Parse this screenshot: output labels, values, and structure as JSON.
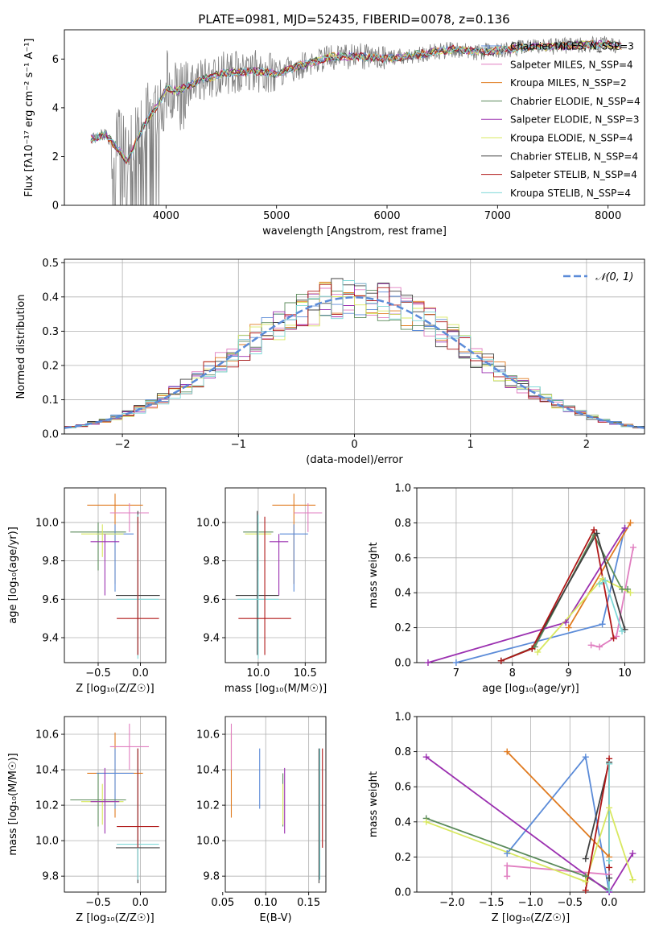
{
  "chart_data": [
    {
      "type": "line",
      "title": "PLATE=0981, MJD=52435, FIBERID=0078, z=0.136",
      "xlabel": "wavelength [Angstrom, rest frame]",
      "ylabel": "Flux [fλ10⁻¹⁷ erg cm⁻² s⁻¹ A⁻¹]",
      "xlim": [
        3080,
        8330
      ],
      "ylim": [
        0,
        7.2
      ],
      "xticks": [
        4000,
        5000,
        6000,
        7000,
        8000
      ],
      "yticks": [
        0,
        2,
        4,
        6
      ],
      "legend_position": "top-right",
      "observed_spectrum_color": "#808080",
      "legend": [
        "Chabrier MILES, N_SSP=3",
        "Salpeter MILES, N_SSP=4",
        "Kroupa MILES, N_SSP=2",
        "Chabrier ELODIE, N_SSP=4",
        "Salpeter ELODIE, N_SSP=3",
        "Kroupa ELODIE, N_SSP=4",
        "Chabrier STELIB, N_SSP=4",
        "Salpeter STELIB, N_SSP=4",
        "Kroupa STELIB, N_SSP=4"
      ],
      "legend_colors": [
        "#5b8bd8",
        "#e07ec0",
        "#e07b20",
        "#5a8a5a",
        "#9b30b0",
        "#d8e860",
        "#404040",
        "#b01818",
        "#7fd8d8"
      ],
      "model_continuum": {
        "x": [
          3300,
          3450,
          3550,
          3650,
          3800,
          3950,
          4000,
          4100,
          4300,
          4500,
          4800,
          5000,
          5200,
          5500,
          5800,
          6000,
          6300,
          6600,
          6800,
          7000,
          7300,
          7500,
          7800,
          8000,
          8100
        ],
        "y": [
          2.7,
          2.9,
          2.4,
          1.8,
          3.3,
          4.3,
          4.8,
          4.7,
          5.1,
          5.4,
          5.5,
          5.4,
          5.7,
          6.1,
          6.1,
          6.0,
          6.2,
          6.4,
          6.3,
          6.35,
          6.5,
          6.5,
          6.6,
          6.6,
          6.55
        ]
      }
    },
    {
      "type": "line",
      "title": "",
      "xlabel": "(data-model)/error",
      "ylabel": "Normed distribution",
      "xlim": [
        -2.5,
        2.5
      ],
      "ylim": [
        0,
        0.51
      ],
      "xticks": [
        -2,
        -1,
        0,
        1,
        2
      ],
      "yticks": [
        0.0,
        0.1,
        0.2,
        0.3,
        0.4,
        0.5
      ],
      "legend": [
        "𝒩(0, 1)"
      ],
      "legend_position": "top-right",
      "gaussian_color": "#5b8bd8",
      "series_colors": [
        "#5b8bd8",
        "#e07ec0",
        "#e07b20",
        "#5a8a5a",
        "#9b30b0",
        "#d8e860",
        "#404040",
        "#b01818",
        "#7fd8d8"
      ],
      "bin_width": 0.1
    },
    {
      "type": "scatter",
      "xlabel": "Z [log₁₀(Z/Z☉)]",
      "ylabel": "age  [log₁₀(age/yr)]",
      "xlim": [
        -0.9,
        0.3
      ],
      "ylim": [
        9.27,
        10.18
      ],
      "xticks": [
        -0.5,
        0.0
      ],
      "yticks": [
        9.4,
        9.6,
        9.8,
        10.0
      ],
      "points": [
        {
          "color": "#e07b20",
          "x": -0.3,
          "xerr": 0.33,
          "y": 10.09,
          "yerr": [
            0.41,
            0.06
          ]
        },
        {
          "color": "#e07ec0",
          "x": -0.13,
          "xerr": 0.23,
          "y": 10.05,
          "yerr": [
            0.1,
            0.05
          ]
        },
        {
          "color": "#5a8a5a",
          "x": -0.5,
          "xerr": 0.33,
          "y": 9.95,
          "yerr": [
            0.2,
            0.05
          ]
        },
        {
          "color": "#5b8bd8",
          "x": -0.3,
          "xerr": 0.22,
          "y": 9.94,
          "yerr": [
            0.3,
            0.05
          ]
        },
        {
          "color": "#d8e860",
          "x": -0.45,
          "xerr": 0.25,
          "y": 9.94,
          "yerr": [
            0.12,
            0.05
          ]
        },
        {
          "color": "#9b30b0",
          "x": -0.42,
          "xerr": 0.17,
          "y": 9.9,
          "yerr": [
            0.28,
            0.04
          ]
        },
        {
          "color": "#404040",
          "x": -0.03,
          "xerr": 0.26,
          "y": 9.62,
          "yerr": [
            0.31,
            0.44
          ]
        },
        {
          "color": "#7fd8d8",
          "x": -0.03,
          "xerr": 0.25,
          "y": 9.6,
          "yerr": [
            0.31,
            0.44
          ]
        },
        {
          "color": "#b01818",
          "x": -0.03,
          "xerr": 0.25,
          "y": 9.5,
          "yerr": [
            0.19,
            0.53
          ]
        }
      ]
    },
    {
      "type": "scatter",
      "xlabel": "mass [log₁₀(M/M☉)]",
      "ylabel": "",
      "xlim": [
        9.65,
        10.72
      ],
      "ylim": [
        9.27,
        10.18
      ],
      "xticks": [
        10.0,
        10.5
      ],
      "yticks": [
        9.4,
        9.6,
        9.8,
        10.0
      ],
      "points": [
        {
          "color": "#e07b20",
          "x": 10.38,
          "xerr": 0.23,
          "y": 10.09,
          "yerr": [
            0.41,
            0.06
          ]
        },
        {
          "color": "#e07ec0",
          "x": 10.53,
          "xerr": 0.15,
          "y": 10.05,
          "yerr": [
            0.1,
            0.05
          ]
        },
        {
          "color": "#5a8a5a",
          "x": 10.0,
          "xerr": 0.16,
          "y": 9.95,
          "yerr": [
            0.2,
            0.05
          ]
        },
        {
          "color": "#5b8bd8",
          "x": 10.38,
          "xerr": 0.15,
          "y": 9.94,
          "yerr": [
            0.3,
            0.05
          ]
        },
        {
          "color": "#d8e860",
          "x": 10.0,
          "xerr": 0.14,
          "y": 9.94,
          "yerr": [
            0.12,
            0.05
          ]
        },
        {
          "color": "#9b30b0",
          "x": 10.22,
          "xerr": 0.1,
          "y": 9.9,
          "yerr": [
            0.28,
            0.04
          ]
        },
        {
          "color": "#404040",
          "x": 9.99,
          "xerr": 0.23,
          "y": 9.62,
          "yerr": [
            0.31,
            0.44
          ]
        },
        {
          "color": "#7fd8d8",
          "x": 10.0,
          "xerr": 0.22,
          "y": 9.6,
          "yerr": [
            0.31,
            0.44
          ]
        },
        {
          "color": "#b01818",
          "x": 10.07,
          "xerr": 0.28,
          "y": 9.5,
          "yerr": [
            0.19,
            0.53
          ]
        }
      ]
    },
    {
      "type": "line",
      "xlabel": "age  [log₁₀(age/yr)]",
      "ylabel": "mass weight",
      "xlim": [
        6.3,
        10.35
      ],
      "ylim": [
        0,
        1.0
      ],
      "xticks": [
        7,
        8,
        9,
        10
      ],
      "yticks": [
        0.0,
        0.2,
        0.4,
        0.6,
        0.8,
        1.0
      ],
      "series": [
        {
          "color": "#5b8bd8",
          "x": [
            7.0,
            9.6,
            10.0
          ],
          "y": [
            0.0,
            0.22,
            0.77
          ]
        },
        {
          "color": "#e07ec0",
          "x": [
            9.4,
            9.55,
            9.85,
            10.15
          ],
          "y": [
            0.1,
            0.09,
            0.15,
            0.66
          ]
        },
        {
          "color": "#e07b20",
          "x": [
            9.0,
            10.1
          ],
          "y": [
            0.2,
            0.8
          ]
        },
        {
          "color": "#5a8a5a",
          "x": [
            7.8,
            8.4,
            9.45,
            9.95,
            10.05
          ],
          "y": [
            0.01,
            0.09,
            0.73,
            0.42,
            0.42
          ]
        },
        {
          "color": "#9b30b0",
          "x": [
            6.5,
            8.95,
            10.0
          ],
          "y": [
            0.0,
            0.23,
            0.77
          ]
        },
        {
          "color": "#d8e860",
          "x": [
            8.45,
            9.6,
            10.1
          ],
          "y": [
            0.06,
            0.48,
            0.4
          ]
        },
        {
          "color": "#404040",
          "x": [
            7.8,
            8.35,
            9.5,
            10.0
          ],
          "y": [
            0.01,
            0.08,
            0.74,
            0.19
          ]
        },
        {
          "color": "#b01818",
          "x": [
            7.8,
            8.35,
            9.45,
            9.8
          ],
          "y": [
            0.01,
            0.08,
            0.76,
            0.14
          ]
        },
        {
          "color": "#7fd8d8",
          "x": [
            9.55,
            9.65,
            9.95
          ],
          "y": [
            0.45,
            0.47,
            0.18
          ]
        }
      ]
    },
    {
      "type": "scatter",
      "xlabel": "Z [log₁₀(Z/Z☉)]",
      "ylabel": "mass [log₁₀(M/M☉)]",
      "xlim": [
        -0.9,
        0.3
      ],
      "ylim": [
        9.71,
        10.7
      ],
      "xticks": [
        -0.5,
        0.0
      ],
      "yticks": [
        9.8,
        10.0,
        10.2,
        10.4,
        10.6
      ],
      "points": [
        {
          "color": "#e07b20",
          "x": -0.3,
          "xerr": 0.33,
          "y": 10.38,
          "yerr": [
            0.25,
            0.23
          ]
        },
        {
          "color": "#e07ec0",
          "x": -0.13,
          "xerr": 0.23,
          "y": 10.53,
          "yerr": [
            0.13,
            0.13
          ]
        },
        {
          "color": "#5b8bd8",
          "x": -0.3,
          "xerr": 0.22,
          "y": 10.38,
          "yerr": [
            0.2,
            0.14
          ]
        },
        {
          "color": "#5a8a5a",
          "x": -0.5,
          "xerr": 0.33,
          "y": 10.23,
          "yerr": [
            0.15,
            0.15
          ]
        },
        {
          "color": "#d8e860",
          "x": -0.45,
          "xerr": 0.25,
          "y": 10.22,
          "yerr": [
            0.13,
            0.1
          ]
        },
        {
          "color": "#9b30b0",
          "x": -0.42,
          "xerr": 0.17,
          "y": 10.22,
          "yerr": [
            0.18,
            0.19
          ]
        },
        {
          "color": "#404040",
          "x": -0.03,
          "xerr": 0.26,
          "y": 9.96,
          "yerr": [
            0.2,
            0.56
          ]
        },
        {
          "color": "#7fd8d8",
          "x": -0.03,
          "xerr": 0.25,
          "y": 9.98,
          "yerr": [
            0.2,
            0.54
          ]
        },
        {
          "color": "#b01818",
          "x": -0.03,
          "xerr": 0.25,
          "y": 10.08,
          "yerr": [
            0.12,
            0.44
          ]
        }
      ]
    },
    {
      "type": "scatter",
      "xlabel": "E(B-V)",
      "ylabel": "",
      "xlim": [
        0.053,
        0.17
      ],
      "ylim": [
        9.71,
        10.7
      ],
      "xticks": [
        0.05,
        0.1,
        0.15
      ],
      "yticks": [
        9.8,
        10.0,
        10.2,
        10.4,
        10.6
      ],
      "points": [
        {
          "color": "#e07b20",
          "x": 0.06,
          "y": 10.38,
          "yerr": [
            0.25,
            0.23
          ]
        },
        {
          "color": "#e07ec0",
          "x": 0.06,
          "y": 10.53,
          "yerr": [
            0.13,
            0.13
          ]
        },
        {
          "color": "#5b8bd8",
          "x": 0.093,
          "y": 10.38,
          "yerr": [
            0.2,
            0.14
          ]
        },
        {
          "color": "#5a8a5a",
          "x": 0.12,
          "y": 10.23,
          "yerr": [
            0.15,
            0.15
          ]
        },
        {
          "color": "#d8e860",
          "x": 0.12,
          "y": 10.22,
          "yerr": [
            0.13,
            0.1
          ]
        },
        {
          "color": "#9b30b0",
          "x": 0.122,
          "y": 10.22,
          "yerr": [
            0.18,
            0.19
          ]
        },
        {
          "color": "#404040",
          "x": 0.162,
          "y": 9.96,
          "yerr": [
            0.2,
            0.56
          ]
        },
        {
          "color": "#7fd8d8",
          "x": 0.163,
          "y": 9.98,
          "yerr": [
            0.2,
            0.54
          ]
        },
        {
          "color": "#b01818",
          "x": 0.166,
          "y": 10.08,
          "yerr": [
            0.12,
            0.44
          ]
        }
      ]
    },
    {
      "type": "line",
      "xlabel": "Z [log₁₀(Z/Z☉)]",
      "ylabel": "mass weight",
      "xlim": [
        -2.45,
        0.45
      ],
      "ylim": [
        0,
        1.0
      ],
      "xticks": [
        -2.0,
        -1.5,
        -1.0,
        -0.5,
        0.0
      ],
      "yticks": [
        0.0,
        0.2,
        0.4,
        0.6,
        0.8,
        1.0
      ],
      "series": [
        {
          "color": "#5b8bd8",
          "x": [
            -1.3,
            -0.3,
            0.0
          ],
          "y": [
            0.22,
            0.77,
            0.0
          ]
        },
        {
          "color": "#e07ec0",
          "x": [
            -1.3,
            -1.3,
            0.0
          ],
          "y": [
            0.09,
            0.15,
            0.1
          ]
        },
        {
          "color": "#e07b20",
          "x": [
            -1.3,
            0.0
          ],
          "y": [
            0.8,
            0.2
          ]
        },
        {
          "color": "#5a8a5a",
          "x": [
            -2.33,
            -0.3,
            0.0,
            0.0
          ],
          "y": [
            0.42,
            0.09,
            0.01,
            0.73
          ]
        },
        {
          "color": "#9b30b0",
          "x": [
            -2.33,
            0.0,
            0.3
          ],
          "y": [
            0.77,
            0.0,
            0.22
          ]
        },
        {
          "color": "#d8e860",
          "x": [
            -2.33,
            -0.3,
            0.0,
            0.3
          ],
          "y": [
            0.4,
            0.06,
            0.48,
            0.07
          ]
        },
        {
          "color": "#404040",
          "x": [
            -0.3,
            0.0,
            0.0
          ],
          "y": [
            0.19,
            0.74,
            0.08
          ]
        },
        {
          "color": "#b01818",
          "x": [
            -0.3,
            0.0,
            0.0
          ],
          "y": [
            0.01,
            0.76,
            0.14
          ]
        },
        {
          "color": "#7fd8d8",
          "x": [
            0.0,
            0.0,
            0.0
          ],
          "y": [
            0.01,
            0.73,
            0.18
          ]
        }
      ]
    }
  ]
}
